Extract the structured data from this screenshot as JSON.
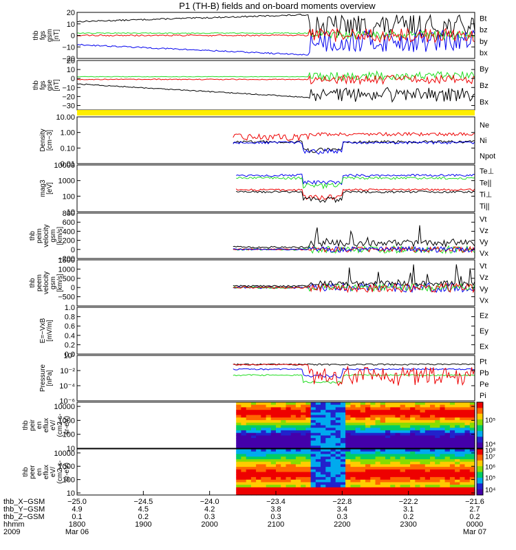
{
  "title": "P1 (TH-B) fields and on-board moments overview",
  "colors": {
    "black": "#000000",
    "red": "#ee0000",
    "green": "#22dd22",
    "blue": "#0000ee",
    "yellow": "#ffee00"
  },
  "chart_data": [
    {
      "type": "line",
      "id": "bgsm",
      "ylabel": [
        "thb",
        "fgs",
        "gsm",
        "[nT]"
      ],
      "ylim": [
        -20,
        20
      ],
      "yticks": [
        {
          "v": 20,
          "l": "20"
        },
        {
          "v": 10,
          "l": "10"
        },
        {
          "v": 0,
          "l": "0"
        },
        {
          "v": -10,
          "l": "−10"
        },
        {
          "v": -20,
          "l": "−20"
        }
      ],
      "legend": [
        {
          "label": "Bt",
          "color": "black"
        },
        {
          "label": "bz",
          "color": "red"
        },
        {
          "label": "by",
          "color": "green"
        },
        {
          "label": "bx",
          "color": "blue"
        }
      ]
    },
    {
      "type": "line",
      "id": "bgse",
      "ylabel": [
        "thb",
        "fgs",
        "gse",
        "[nT]"
      ],
      "ylim": [
        -35,
        20
      ],
      "yticks": [
        {
          "v": 20,
          "l": "20"
        },
        {
          "v": 10,
          "l": "10"
        },
        {
          "v": 0,
          "l": "0"
        },
        {
          "v": -10,
          "l": "−10"
        },
        {
          "v": -20,
          "l": "−20"
        },
        {
          "v": -30,
          "l": "−30"
        }
      ],
      "legend": [
        {
          "label": "By",
          "color": "green"
        },
        {
          "label": "Bz",
          "color": "red"
        },
        {
          "label": "Bx",
          "color": "black"
        }
      ]
    },
    {
      "type": "bar",
      "id": "flags",
      "fill": "yellow"
    },
    {
      "type": "line",
      "id": "density",
      "scale": "log",
      "ylabel": [
        "Density",
        "[cm−3]"
      ],
      "ylim": [
        0.01,
        10
      ],
      "yticks": [
        {
          "v": 10,
          "l": "10.00"
        },
        {
          "v": 1,
          "l": "1.00"
        },
        {
          "v": 0.1,
          "l": "0.10"
        },
        {
          "v": 0.01,
          "l": "0.01"
        }
      ],
      "legend": [
        {
          "label": "Ne",
          "color": "red"
        },
        {
          "label": "Ni",
          "color": "black"
        },
        {
          "label": "Npot",
          "color": "blue"
        }
      ]
    },
    {
      "type": "line",
      "id": "temp",
      "scale": "log",
      "ylabel": [
        "mag3",
        "[eV]"
      ],
      "ylim": [
        10,
        10000
      ],
      "yticks": [
        {
          "v": 10000,
          "l": "10000"
        },
        {
          "v": 1000,
          "l": "1000"
        },
        {
          "v": 100,
          "l": "100"
        },
        {
          "v": 10,
          "l": "10"
        }
      ],
      "legend": [
        {
          "label": "Te⊥",
          "color": "red"
        },
        {
          "label": "Te||",
          "color": "black"
        },
        {
          "label": "Ti⊥",
          "color": "blue"
        },
        {
          "label": "Ti||",
          "color": "green"
        }
      ]
    },
    {
      "type": "line",
      "id": "veli",
      "ylabel": [
        "thb",
        "peim",
        "velocity",
        "gsm",
        "[km/s]"
      ],
      "ylim": [
        -200,
        800
      ],
      "yticks": [
        {
          "v": 800,
          "l": "800"
        },
        {
          "v": 600,
          "l": "600"
        },
        {
          "v": 400,
          "l": "400"
        },
        {
          "v": 200,
          "l": "200"
        },
        {
          "v": 0,
          "l": "0"
        },
        {
          "v": -200,
          "l": "−200"
        }
      ],
      "legend": [
        {
          "label": "Vt",
          "color": "black"
        },
        {
          "label": "Vz",
          "color": "red"
        },
        {
          "label": "Vy",
          "color": "green"
        },
        {
          "label": "Vx",
          "color": "blue"
        }
      ]
    },
    {
      "type": "line",
      "id": "vele",
      "ylabel": [
        "thb",
        "peem",
        "velocity",
        "gsm",
        "[km/s]"
      ],
      "ylim": [
        -1000,
        1500
      ],
      "yticks": [
        {
          "v": 1500,
          "l": "1500"
        },
        {
          "v": 1000,
          "l": "1000"
        },
        {
          "v": 500,
          "l": "500"
        },
        {
          "v": 0,
          "l": "0"
        },
        {
          "v": -500,
          "l": "−500"
        }
      ],
      "legend": [
        {
          "label": "Vt",
          "color": "black"
        },
        {
          "label": "Vz",
          "color": "red"
        },
        {
          "label": "Vy",
          "color": "green"
        },
        {
          "label": "Vx",
          "color": "blue"
        }
      ]
    },
    {
      "type": "line",
      "id": "efield",
      "ylabel": [
        "E=−VxB",
        "[mV/m]"
      ],
      "ylim": [
        0,
        1
      ],
      "yticks": [
        {
          "v": 1.0,
          "l": "1.0"
        },
        {
          "v": 0.8,
          "l": "0.8"
        },
        {
          "v": 0.6,
          "l": "0.6"
        },
        {
          "v": 0.4,
          "l": "0.4"
        },
        {
          "v": 0.2,
          "l": "0.2"
        },
        {
          "v": 0.0,
          "l": "0.0"
        }
      ],
      "legend": [
        {
          "label": "Ez",
          "color": "red"
        },
        {
          "label": "Ey",
          "color": "green"
        },
        {
          "label": "Ex",
          "color": "blue"
        }
      ]
    },
    {
      "type": "line",
      "id": "pressure",
      "scale": "log",
      "ylabel": [
        "Pressure",
        "[nPa]"
      ],
      "ylim": [
        1e-06,
        1
      ],
      "yticks": [
        {
          "v": 1,
          "l": "10⁰"
        },
        {
          "v": 0.01,
          "l": "10⁻²"
        },
        {
          "v": 0.0001,
          "l": "10⁻⁴"
        },
        {
          "v": 1e-06,
          "l": "10⁻⁶"
        }
      ],
      "legend": [
        {
          "label": "Pt",
          "color": "black"
        },
        {
          "label": "Pb",
          "color": "red"
        },
        {
          "label": "Pe",
          "color": "green"
        },
        {
          "label": "Pi",
          "color": "blue"
        }
      ]
    },
    {
      "type": "heatmap",
      "id": "ionspec",
      "scale": "log",
      "ylabel": [
        "thb",
        "peir",
        "en",
        "eflux",
        "eV/",
        "(cm2-s-",
        "sr-eV)"
      ],
      "ylim": [
        10,
        20000
      ],
      "yticks": [
        {
          "v": 10000,
          "l": "10000"
        },
        {
          "v": 1000,
          "l": "1000"
        },
        {
          "v": 100,
          "l": "100"
        },
        {
          "v": 10,
          "l": "10"
        }
      ],
      "colorbar": {
        "ticks": [
          {
            "l": "10⁵",
            "f": 0.62
          },
          {
            "l": "10⁴",
            "f": 0.1
          }
        ]
      }
    },
    {
      "type": "heatmap",
      "id": "elecspec",
      "scale": "log",
      "ylabel": [
        "thb",
        "peer",
        "en",
        "eflux",
        "eV/",
        "(cm2-s-",
        "sr-eV)"
      ],
      "ylim": [
        7,
        20000
      ],
      "yticks": [
        {
          "v": 10000,
          "l": "10000"
        },
        {
          "v": 1000,
          "l": "1000"
        },
        {
          "v": 100,
          "l": "100"
        },
        {
          "v": 10,
          "l": "10"
        }
      ],
      "colorbar": {
        "ticks": [
          {
            "l": "10⁸",
            "f": 0.98
          },
          {
            "l": "10⁷",
            "f": 0.84
          },
          {
            "l": "10⁶",
            "f": 0.62
          },
          {
            "l": "10⁵",
            "f": 0.38
          },
          {
            "l": "10⁴",
            "f": 0.12
          }
        ]
      }
    }
  ],
  "xaxis": {
    "range": [
      1800,
      2400
    ],
    "rows": [
      {
        "label": "thb_X−GSM",
        "values": [
          "−25.0",
          "−24.5",
          "−24.0",
          "−23.4",
          "−22.8",
          "−22.2",
          "−21.6"
        ]
      },
      {
        "label": "thb_Y−GSM",
        "values": [
          "4.9",
          "4.5",
          "4.2",
          "3.8",
          "3.4",
          "3.1",
          "2.7"
        ]
      },
      {
        "label": "thb_Z−GSM",
        "values": [
          "0.1",
          "0.2",
          "0.3",
          "0.3",
          "0.3",
          "0.2",
          "0.2"
        ]
      },
      {
        "label": "hhmm",
        "values": [
          "1800",
          "1900",
          "2000",
          "2100",
          "2200",
          "2300",
          "0000"
        ]
      },
      {
        "label": "2009",
        "values": [
          "Mar 06",
          "",
          "",
          "",
          "",
          "",
          "Mar 07"
        ]
      }
    ]
  }
}
